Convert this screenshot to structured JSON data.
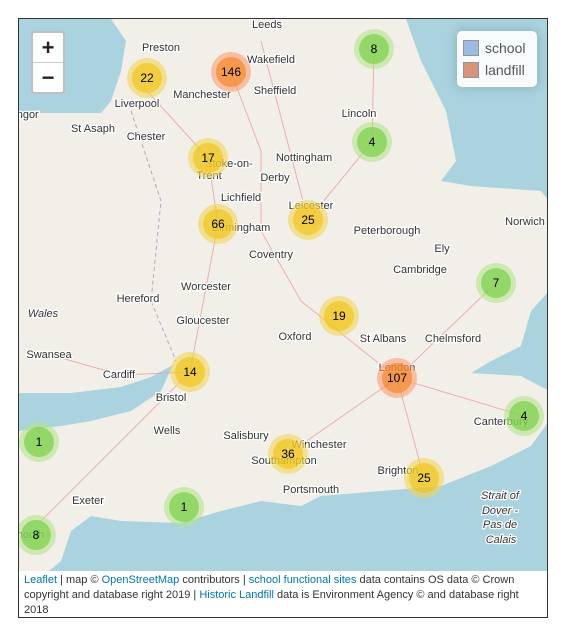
{
  "zoom": {
    "in": "+",
    "out": "−"
  },
  "legend": {
    "items": [
      {
        "label": "school",
        "color": "#93b4e0"
      },
      {
        "label": "landfill",
        "color": "#d3896e"
      }
    ]
  },
  "places": [
    "Leeds",
    "Preston",
    "Wakefield",
    "Manchester",
    "Sheffield",
    "Liverpool",
    "Bangor",
    "St Asaph",
    "Chester",
    "Lincoln",
    "Stoke-on-",
    "Trent",
    "Nottingham",
    "Derby",
    "Lichfield",
    "Leicester",
    "Birmingham",
    "Norwich",
    "Peterborough",
    "Coventry",
    "Ely",
    "Cambridge",
    "Hereford",
    "Worcester",
    "Wales",
    "Gloucester",
    "Oxford",
    "St Albans",
    "Chelmsford",
    "Swansea",
    "Cardiff",
    "Bristol",
    "London",
    "Wells",
    "Salisbury",
    "Winchester",
    "Southampton",
    "Canterbury",
    "Brighton",
    "Portsmouth",
    "Exeter",
    "Strait of",
    "Dover -",
    "Pas de",
    "Calais",
    "mouth"
  ],
  "clusters": [
    "8",
    "22",
    "146",
    "4",
    "17",
    "66",
    "25",
    "7",
    "19",
    "14",
    "107",
    "4",
    "1",
    "36",
    "25",
    "1",
    "8"
  ],
  "attribution": [
    "Leaflet",
    " | map © ",
    "OpenStreetMap",
    " contributors | ",
    "school functional sites",
    " data contains OS data © Crown copyright and database right 2019 | ",
    "Historic Landfill",
    " data is Environment Agency © and database right 2018"
  ]
}
